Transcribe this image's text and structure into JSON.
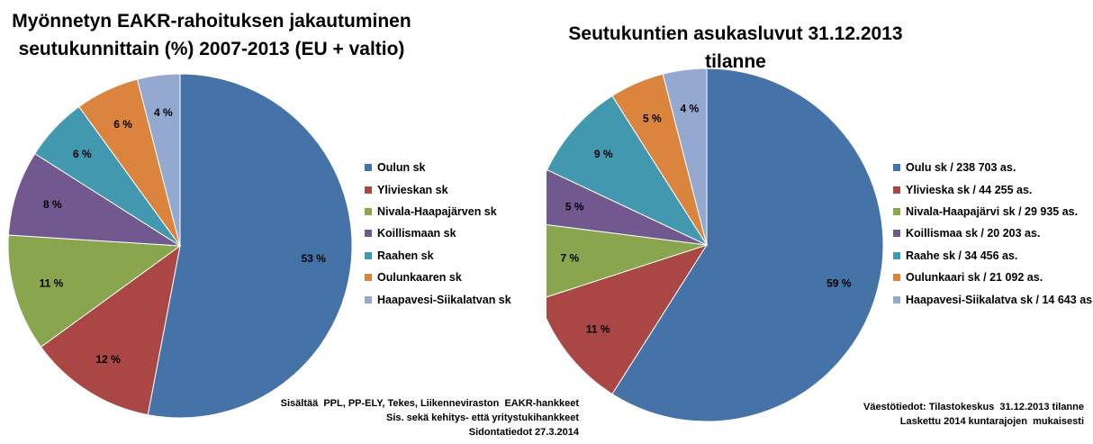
{
  "chart_data": [
    {
      "type": "pie",
      "title": "Myönnetyn EAKR-rahoituksen jakautuminen seutukunnittain (%) 2007-2013 (EU + valtio)",
      "slices": [
        {
          "label": "Oulun sk",
          "value": 53,
          "display": "53 %",
          "color": "#4572A7"
        },
        {
          "label": "Ylivieskan sk",
          "value": 12,
          "display": "12 %",
          "color": "#AA4643"
        },
        {
          "label": "Nivala-Haapajärven sk",
          "value": 11,
          "display": "11 %",
          "color": "#89A54E"
        },
        {
          "label": "Koillismaan sk",
          "value": 8,
          "display": "8 %",
          "color": "#71588F"
        },
        {
          "label": "Raahen sk",
          "value": 6,
          "display": "6 %",
          "color": "#4198AF"
        },
        {
          "label": "Oulunkaaren sk",
          "value": 6,
          "display": "6 %",
          "color": "#DB843D"
        },
        {
          "label": "Haapavesi-Siikalatvan sk",
          "value": 4,
          "display": "4 %",
          "color": "#93A9CF"
        }
      ],
      "legend_position": "right",
      "notes": [
        "Sisältää  PPL, PP-ELY, Tekes, Liikenneviraston  EAKR-hankkeet",
        "Sis. sekä kehitys- että yritystukihankkeet",
        "Sidontatiedot 27.3.2014"
      ]
    },
    {
      "type": "pie",
      "title": "Seutukuntien asukasluvut 31.12.2013 tilanne",
      "slices": [
        {
          "label": "Oulu sk / 238 703 as.",
          "value": 59,
          "display": "59 %",
          "color": "#4572A7"
        },
        {
          "label": "Ylivieska sk / 44 255 as.",
          "value": 11,
          "display": "11 %",
          "color": "#AA4643"
        },
        {
          "label": "Nivala-Haapajärvi sk / 29 935 as.",
          "value": 7,
          "display": "7 %",
          "color": "#89A54E"
        },
        {
          "label": "Koillismaa sk / 20 203 as.",
          "value": 5,
          "display": "5 %",
          "color": "#71588F"
        },
        {
          "label": "Raahe sk / 34 456 as.",
          "value": 9,
          "display": "9 %",
          "color": "#4198AF"
        },
        {
          "label": "Oulunkaari sk / 21 092 as.",
          "value": 5,
          "display": "5 %",
          "color": "#DB843D"
        },
        {
          "label": "Haapavesi-Siikalatva sk / 14 643 as.",
          "value": 4,
          "display": "4 %",
          "color": "#93A9CF"
        }
      ],
      "legend_position": "right",
      "notes": [
        "Väestötiedot: Tilastokeskus  31.12.2013 tilanne",
        "Laskettu 2014 kuntarajojen  mukaisesti"
      ]
    }
  ]
}
